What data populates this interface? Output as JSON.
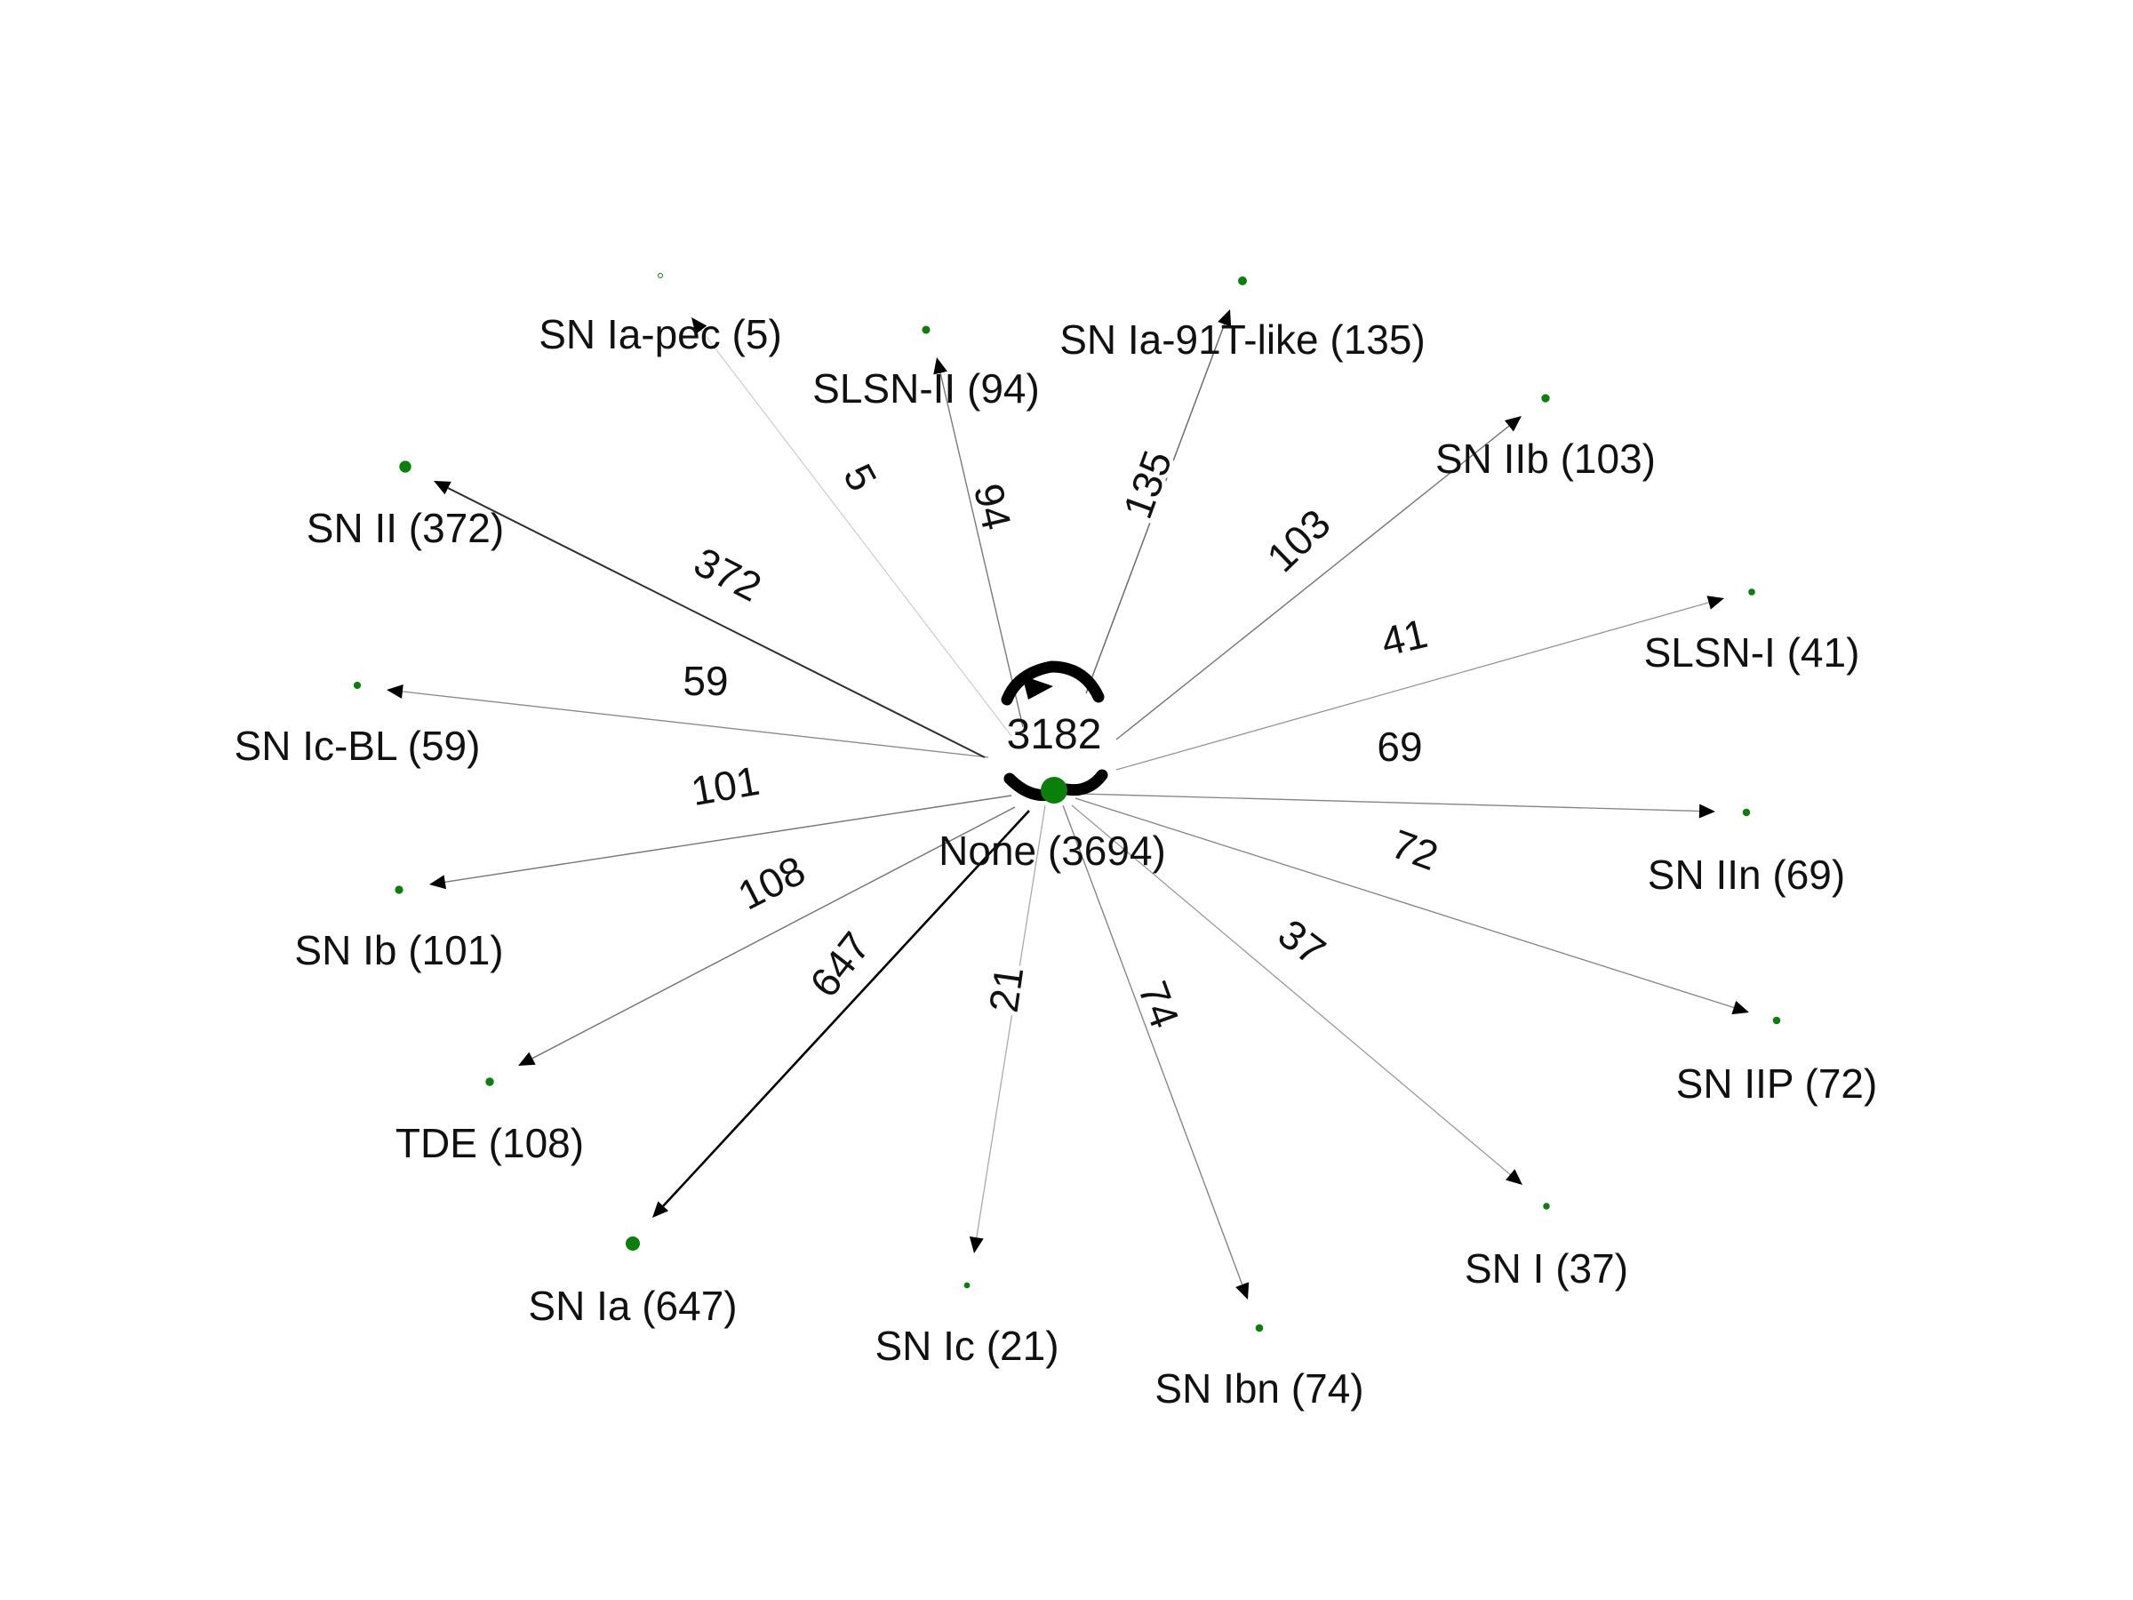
{
  "diagram": {
    "type": "directed-network",
    "colors": {
      "node": "#0a7f0a",
      "edge": "#000000",
      "text": "#111111",
      "background": "#ffffff"
    },
    "hub": {
      "id": "none",
      "label": "None (3694)",
      "count": 3694,
      "self_loop_label": "3182",
      "self_loop_count": 3182
    },
    "nodes": [
      {
        "id": "sn-ia-pec",
        "label": "SN Ia-pec (5)",
        "count": 5
      },
      {
        "id": "slsn-ii",
        "label": "SLSN-II (94)",
        "count": 94
      },
      {
        "id": "sn-ia-91t-like",
        "label": "SN Ia-91T-like (135)",
        "count": 135
      },
      {
        "id": "sn-iib",
        "label": "SN IIb (103)",
        "count": 103
      },
      {
        "id": "slsn-i",
        "label": "SLSN-I (41)",
        "count": 41
      },
      {
        "id": "sn-iin",
        "label": "SN IIn (69)",
        "count": 69
      },
      {
        "id": "sn-iip",
        "label": "SN IIP (72)",
        "count": 72
      },
      {
        "id": "sn-i",
        "label": "SN I (37)",
        "count": 37
      },
      {
        "id": "sn-ibn",
        "label": "SN Ibn (74)",
        "count": 74
      },
      {
        "id": "sn-ic",
        "label": "SN Ic (21)",
        "count": 21
      },
      {
        "id": "sn-ia",
        "label": "SN Ia (647)",
        "count": 647
      },
      {
        "id": "tde",
        "label": "TDE (108)",
        "count": 108
      },
      {
        "id": "sn-ib",
        "label": "SN Ib (101)",
        "count": 101
      },
      {
        "id": "sn-ic-bl",
        "label": "SN Ic-BL (59)",
        "count": 59
      },
      {
        "id": "sn-ii",
        "label": "SN II (372)",
        "count": 372
      }
    ],
    "edges": [
      {
        "from": "none",
        "to": "sn-ia-pec",
        "label": "5",
        "weight": 5
      },
      {
        "from": "none",
        "to": "slsn-ii",
        "label": "94",
        "weight": 94
      },
      {
        "from": "none",
        "to": "sn-ia-91t-like",
        "label": "135",
        "weight": 135
      },
      {
        "from": "none",
        "to": "sn-iib",
        "label": "103",
        "weight": 103
      },
      {
        "from": "none",
        "to": "slsn-i",
        "label": "41",
        "weight": 41
      },
      {
        "from": "none",
        "to": "sn-iin",
        "label": "69",
        "weight": 69
      },
      {
        "from": "none",
        "to": "sn-iip",
        "label": "72",
        "weight": 72
      },
      {
        "from": "none",
        "to": "sn-i",
        "label": "37",
        "weight": 37
      },
      {
        "from": "none",
        "to": "sn-ibn",
        "label": "74",
        "weight": 74
      },
      {
        "from": "none",
        "to": "sn-ic",
        "label": "21",
        "weight": 21
      },
      {
        "from": "none",
        "to": "sn-ia",
        "label": "647",
        "weight": 647
      },
      {
        "from": "none",
        "to": "tde",
        "label": "108",
        "weight": 108
      },
      {
        "from": "none",
        "to": "sn-ib",
        "label": "101",
        "weight": 101
      },
      {
        "from": "none",
        "to": "sn-ic-bl",
        "label": "59",
        "weight": 59
      },
      {
        "from": "none",
        "to": "sn-ii",
        "label": "372",
        "weight": 372
      }
    ]
  }
}
